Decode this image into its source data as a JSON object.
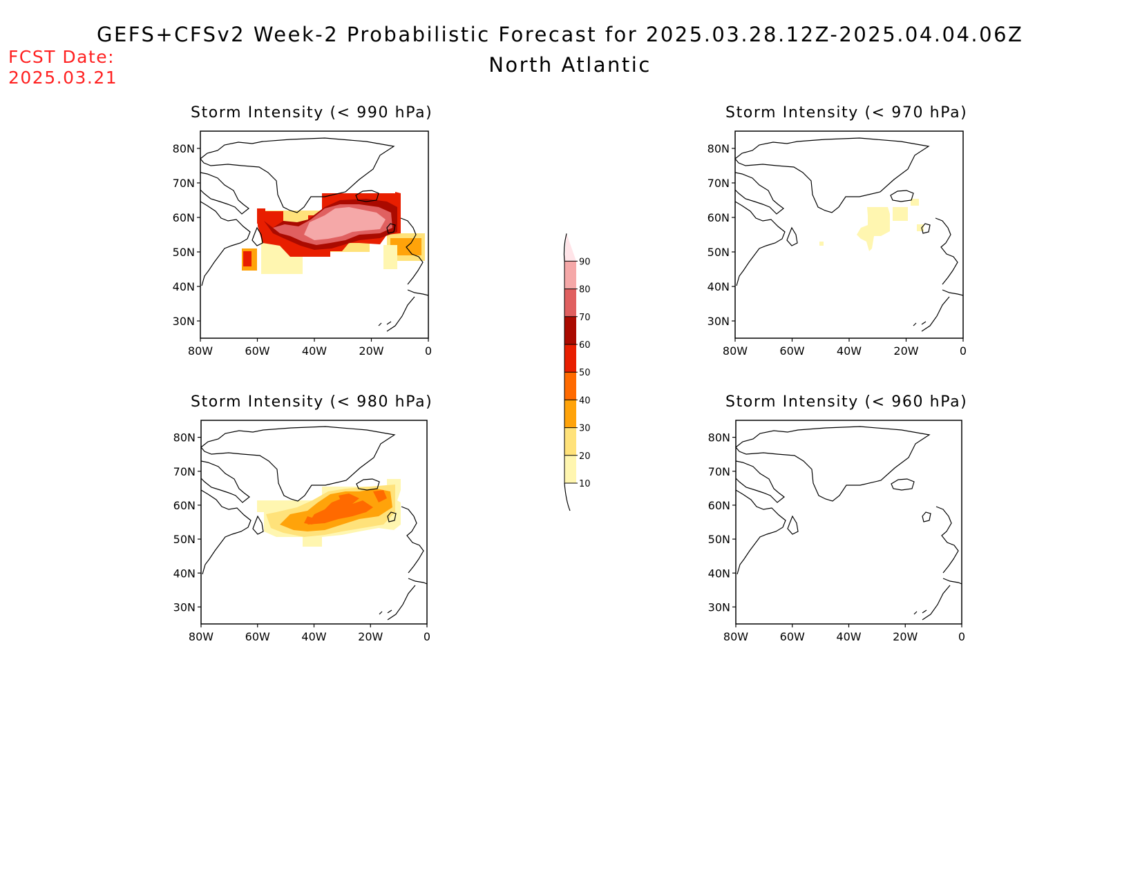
{
  "header": {
    "title": "GEFS+CFSv2 Week-2 Probabilistic Forecast for 2025.03.28.12Z-2025.04.04.06Z",
    "region": "North Atlantic",
    "fcst_label": "FCST Date:",
    "fcst_date": "2025.03.21"
  },
  "panels": [
    {
      "id": "p990",
      "title": "Storm Intensity (< 990 hPa)"
    },
    {
      "id": "p970",
      "title": "Storm Intensity (< 970 hPa)"
    },
    {
      "id": "p980",
      "title": "Storm Intensity (< 980 hPa)"
    },
    {
      "id": "p960",
      "title": "Storm Intensity (< 960 hPa)"
    }
  ],
  "axes": {
    "lat_labels": [
      "80N",
      "70N",
      "60N",
      "50N",
      "40N",
      "30N"
    ],
    "lon_labels": [
      "80W",
      "60W",
      "40W",
      "20W",
      "0"
    ]
  },
  "colorbar": {
    "levels": [
      "10",
      "20",
      "30",
      "40",
      "50",
      "60",
      "70",
      "80",
      "90"
    ],
    "colors": [
      "#fff6b0",
      "#ffe27a",
      "#ffa30a",
      "#ff6a00",
      "#e81e00",
      "#aa0a00",
      "#e06060",
      "#f5a8a8",
      "#ffe4e8"
    ]
  }
}
